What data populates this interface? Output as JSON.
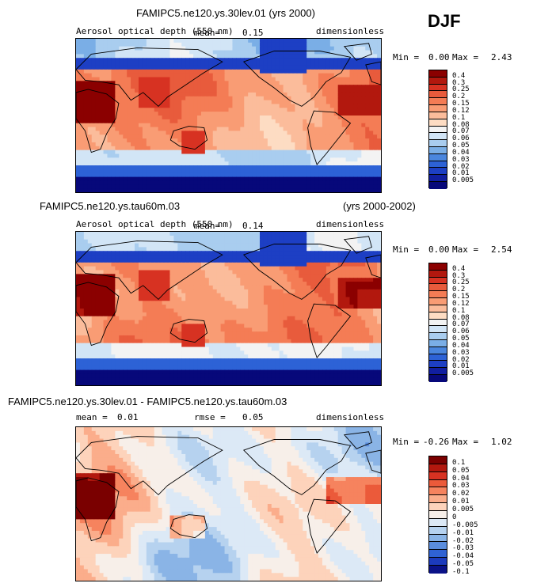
{
  "season": "DJF",
  "colors": {
    "abs_scale": [
      "#8b0000",
      "#b2180e",
      "#d73222",
      "#e85b3c",
      "#f47c55",
      "#f99c74",
      "#fbbc9b",
      "#fddcc3",
      "#f3f3f3",
      "#d2e5f6",
      "#a9cdef",
      "#7aaee6",
      "#4a86de",
      "#2d62d6",
      "#1d3fc4",
      "#111ea0",
      "#07087a"
    ],
    "diff_scale": [
      "#7a0000",
      "#b2180e",
      "#d73222",
      "#eb5a3a",
      "#f6835e",
      "#fbad8b",
      "#fdd3bb",
      "#f7efe9",
      "#dce9f6",
      "#b6d2ef",
      "#8ab4e6",
      "#5a8ddd",
      "#2f62d4",
      "#1c3bbd",
      "#0a1288"
    ]
  },
  "chart_data": [
    {
      "type": "heatmap",
      "title": "FAMIPC5.ne120.ys.30lev.01 (yrs 2000)",
      "variable": "Aerosol optical depth (550 nm)",
      "mean_label": "mean=",
      "mean": "0.15",
      "units": "dimensionless",
      "min_label": "Min =",
      "min": "0.00",
      "max_label": "Max =",
      "max": "2.43",
      "levels": [
        "0.4",
        "0.3",
        "0.25",
        "0.2",
        "0.15",
        "0.12",
        "0.1",
        "0.08",
        "0.07",
        "0.06",
        "0.05",
        "0.04",
        "0.03",
        "0.02",
        "0.01",
        "0.005"
      ]
    },
    {
      "type": "heatmap",
      "title": "FAMIPC5.ne120.ys.tau60m.03",
      "years": "(yrs 2000-2002)",
      "variable": "Aerosol optical depth (550 nm)",
      "mean_label": "mean=",
      "mean": "0.14",
      "units": "dimensionless",
      "min_label": "Min =",
      "min": "0.00",
      "max_label": "Max =",
      "max": "2.54",
      "levels": [
        "0.4",
        "0.3",
        "0.25",
        "0.2",
        "0.15",
        "0.12",
        "0.1",
        "0.08",
        "0.07",
        "0.06",
        "0.05",
        "0.04",
        "0.03",
        "0.02",
        "0.01",
        "0.005"
      ]
    },
    {
      "type": "heatmap",
      "title": "FAMIPC5.ne120.ys.30lev.01 - FAMIPC5.ne120.ys.tau60m.03",
      "mean_label": "mean =",
      "mean": "0.01",
      "rmse_label": "rmse =",
      "rmse": "0.05",
      "units": "dimensionless",
      "min_label": "Min =",
      "min": "-0.26",
      "max_label": "Max =",
      "max": "1.02",
      "levels": [
        "0.1",
        "0.05",
        "0.04",
        "0.03",
        "0.02",
        "0.01",
        "0.005",
        "0",
        "-0.005",
        "-0.01",
        "-0.02",
        "-0.03",
        "-0.04",
        "-0.05",
        "-0.1"
      ]
    }
  ]
}
